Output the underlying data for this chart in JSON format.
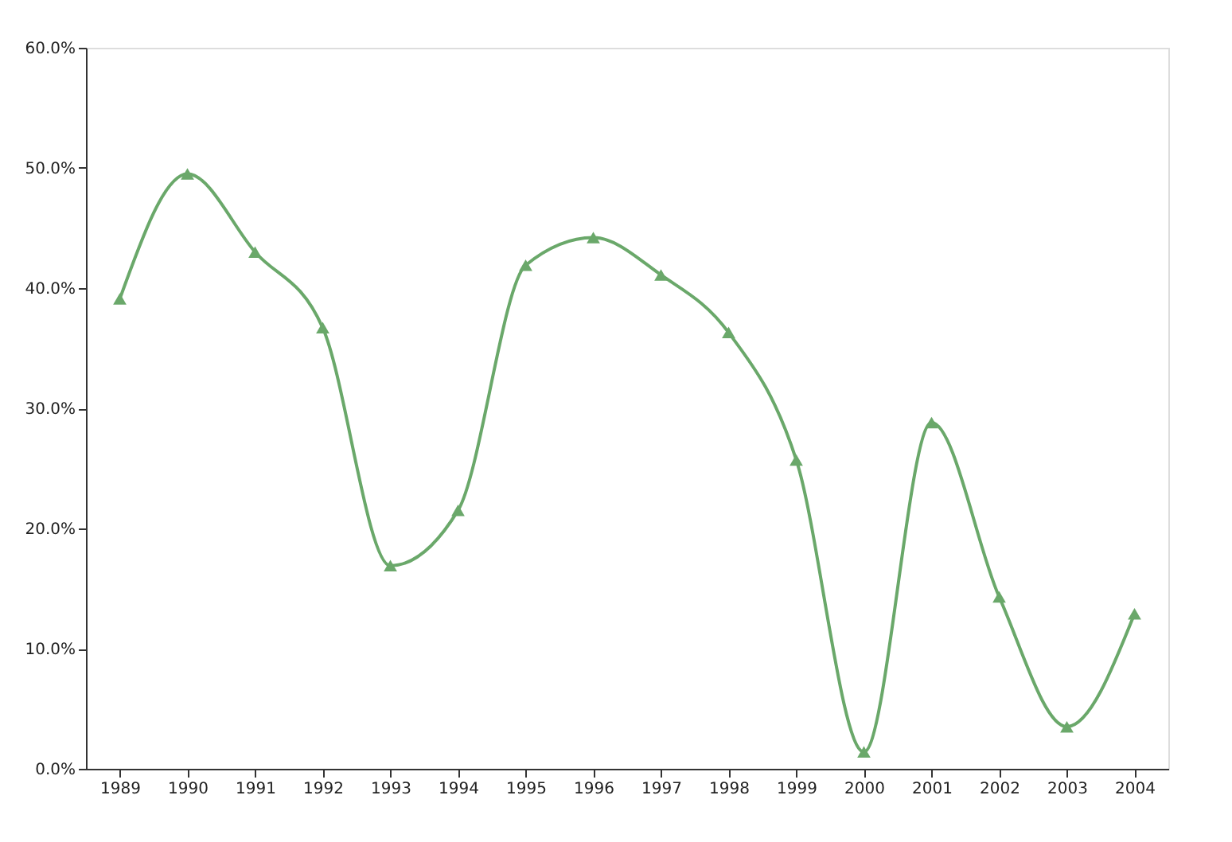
{
  "chart_data": {
    "type": "line",
    "categories": [
      "1989",
      "1990",
      "1991",
      "1992",
      "1993",
      "1994",
      "1995",
      "1996",
      "1997",
      "1998",
      "1999",
      "2000",
      "2001",
      "2002",
      "2003",
      "2004"
    ],
    "series": [
      {
        "color": "#6aa86a",
        "values": [
          39.1,
          49.5,
          43.0,
          36.7,
          16.9,
          21.5,
          41.9,
          44.2,
          41.1,
          36.3,
          25.7,
          1.4,
          28.8,
          14.3,
          3.5,
          12.9
        ]
      }
    ],
    "ylim": [
      0,
      60
    ],
    "yticks": [
      {
        "value": 0,
        "label": "0.0%"
      },
      {
        "value": 10,
        "label": "10.0%"
      },
      {
        "value": 20,
        "label": "20.0%"
      },
      {
        "value": 30,
        "label": "30.0%"
      },
      {
        "value": 40,
        "label": "40.0%"
      },
      {
        "value": 50,
        "label": "50.0%"
      },
      {
        "value": 60,
        "label": "60.0%"
      }
    ],
    "marker": "triangle",
    "grid": false
  }
}
